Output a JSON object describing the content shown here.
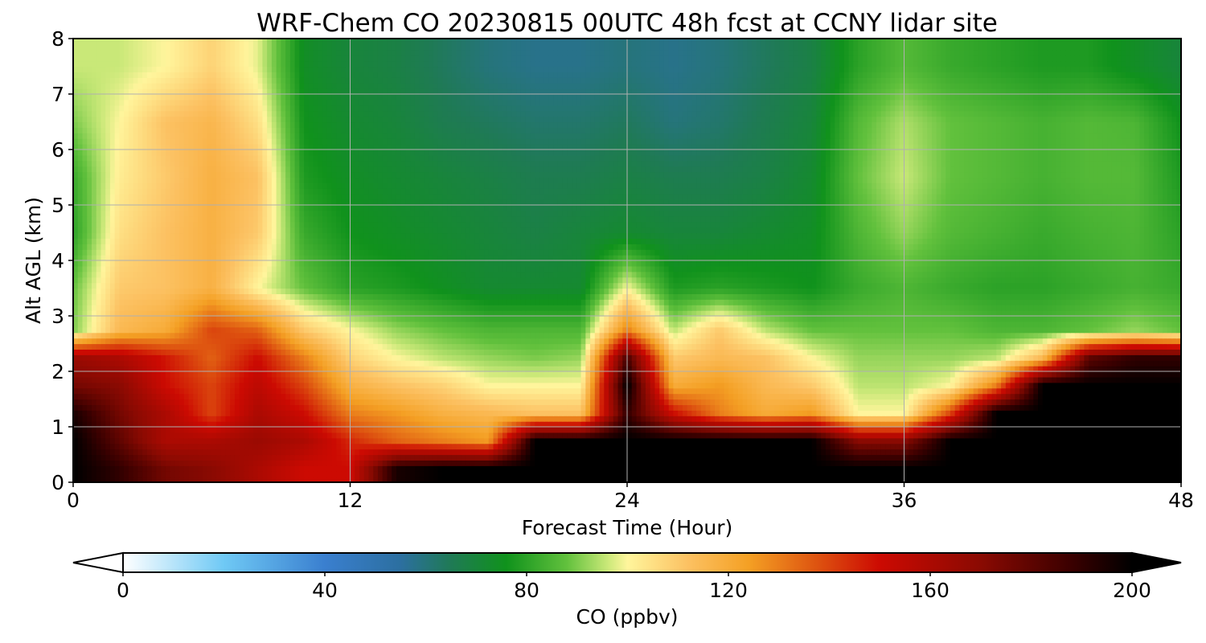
{
  "chart_data": {
    "type": "heatmap",
    "title": "WRF-Chem CO  20230815 00UTC 48h fcst at CCNY lidar site",
    "xlabel": "Forecast Time (Hour)",
    "ylabel": "Alt AGL (km)",
    "xlim": [
      0,
      48
    ],
    "ylim": [
      0,
      8
    ],
    "xticks": [
      0,
      12,
      24,
      36,
      48
    ],
    "yticks": [
      0,
      1,
      2,
      3,
      4,
      5,
      6,
      7,
      8
    ],
    "grid": true,
    "colorbar": {
      "label": "CO  (ppbv)",
      "range": [
        0,
        200
      ],
      "ticks": [
        0,
        40,
        80,
        120,
        160,
        200
      ],
      "extend": "both",
      "orientation": "horizontal"
    },
    "colormap": [
      {
        "v": 0,
        "color": "#ffffff"
      },
      {
        "v": 20,
        "color": "#6fc9f5"
      },
      {
        "v": 40,
        "color": "#3a7fcf"
      },
      {
        "v": 55,
        "color": "#2c6fa0"
      },
      {
        "v": 65,
        "color": "#1f7a55"
      },
      {
        "v": 76,
        "color": "#10921c"
      },
      {
        "v": 88,
        "color": "#62c13d"
      },
      {
        "v": 96,
        "color": "#c9e878"
      },
      {
        "v": 100,
        "color": "#fff59c"
      },
      {
        "v": 112,
        "color": "#fcc162"
      },
      {
        "v": 124,
        "color": "#f4a024"
      },
      {
        "v": 136,
        "color": "#e05c12"
      },
      {
        "v": 150,
        "color": "#cc0a02"
      },
      {
        "v": 170,
        "color": "#8a0a02"
      },
      {
        "v": 188,
        "color": "#3a0000"
      },
      {
        "v": 200,
        "color": "#000000"
      }
    ],
    "x_hours": [
      0,
      2,
      4,
      6,
      8,
      10,
      12,
      14,
      16,
      18,
      20,
      22,
      24,
      26,
      28,
      30,
      32,
      34,
      36,
      38,
      40,
      42,
      44,
      46,
      48
    ],
    "z_km": [
      0.25,
      0.75,
      1.25,
      1.75,
      2.25,
      2.75,
      3.5,
      4.5,
      5.5,
      6.5,
      7.5
    ],
    "values_ppbv": [
      [
        200,
        190,
        175,
        170,
        160,
        150,
        150,
        195,
        200,
        200,
        200,
        200,
        200,
        200,
        200,
        200,
        200,
        200,
        200,
        200,
        200,
        200,
        200,
        200,
        200
      ],
      [
        200,
        180,
        160,
        160,
        165,
        160,
        145,
        135,
        130,
        125,
        200,
        200,
        200,
        200,
        200,
        200,
        200,
        170,
        170,
        200,
        200,
        200,
        200,
        200,
        200
      ],
      [
        195,
        175,
        160,
        140,
        160,
        150,
        130,
        125,
        118,
        115,
        112,
        112,
        190,
        150,
        130,
        120,
        125,
        100,
        100,
        140,
        200,
        200,
        200,
        200,
        200
      ],
      [
        175,
        170,
        150,
        140,
        155,
        140,
        118,
        112,
        108,
        100,
        100,
        100,
        200,
        120,
        125,
        115,
        110,
        95,
        95,
        100,
        130,
        200,
        200,
        200,
        200
      ],
      [
        165,
        160,
        148,
        135,
        150,
        130,
        108,
        100,
        95,
        92,
        90,
        92,
        185,
        110,
        115,
        112,
        100,
        92,
        92,
        92,
        95,
        115,
        180,
        190,
        190
      ],
      [
        90,
        115,
        120,
        140,
        135,
        110,
        100,
        92,
        88,
        85,
        85,
        85,
        130,
        95,
        110,
        95,
        88,
        88,
        88,
        88,
        85,
        85,
        88,
        92,
        88
      ],
      [
        88,
        110,
        112,
        118,
        100,
        88,
        80,
        78,
        75,
        72,
        72,
        72,
        100,
        78,
        80,
        78,
        76,
        82,
        85,
        82,
        80,
        80,
        82,
        84,
        82
      ],
      [
        80,
        105,
        112,
        118,
        110,
        82,
        76,
        74,
        72,
        70,
        68,
        70,
        72,
        70,
        70,
        72,
        74,
        85,
        92,
        86,
        84,
        82,
        84,
        85,
        80
      ],
      [
        82,
        102,
        110,
        118,
        112,
        78,
        74,
        72,
        70,
        68,
        66,
        66,
        68,
        66,
        66,
        68,
        72,
        88,
        96,
        88,
        86,
        84,
        86,
        86,
        78
      ],
      [
        90,
        100,
        112,
        116,
        105,
        76,
        72,
        70,
        66,
        64,
        62,
        62,
        64,
        60,
        62,
        66,
        70,
        86,
        94,
        88,
        86,
        84,
        86,
        85,
        76
      ],
      [
        96,
        96,
        100,
        108,
        98,
        74,
        70,
        68,
        64,
        60,
        58,
        58,
        60,
        58,
        60,
        64,
        68,
        80,
        86,
        82,
        80,
        78,
        78,
        74,
        70
      ]
    ]
  }
}
